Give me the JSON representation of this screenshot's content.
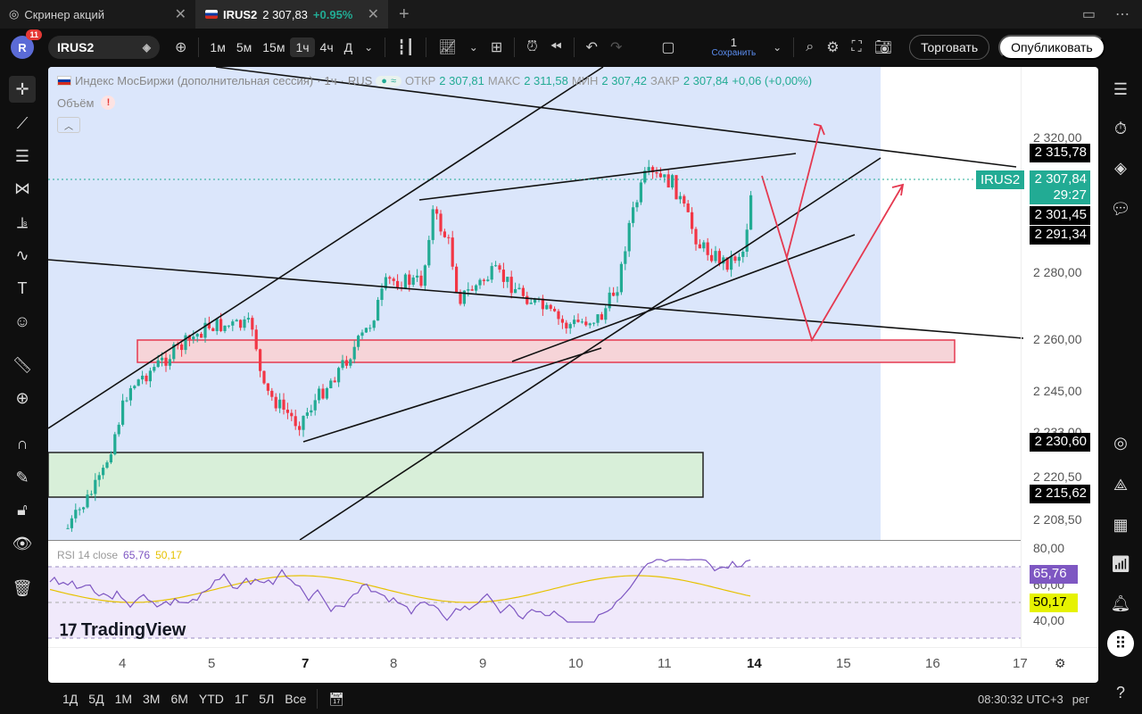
{
  "tabs": [
    {
      "title": "Скринер акций",
      "close": "✕"
    },
    {
      "symbol": "IRUS2",
      "price": "2 307,83",
      "change": "+0.95%",
      "close": "✕"
    }
  ],
  "new_tab": "+",
  "toolbar": {
    "badge": "11",
    "avatar_letter": "R",
    "symbol": "IRUS2",
    "intervals": [
      "1м",
      "5м",
      "15м",
      "1ч",
      "4ч",
      "Д"
    ],
    "active_interval": "1ч",
    "layout_count": "1",
    "save_label": "Сохранить",
    "trade_label": "Торговать",
    "publish_label": "Опубликовать"
  },
  "legend": {
    "title": "Индекс МосБиржи (дополнительная сессия)",
    "interval": "1ч",
    "exchange": "RUS",
    "open_label": "ОТКР",
    "open": "2 307,81",
    "high_label": "МАКС",
    "high": "2 311,58",
    "low_label": "МИН",
    "low": "2 307,42",
    "close_label": "ЗАКР",
    "close": "2 307,84",
    "change": "+0,06 (+0,00%)",
    "volume_label": "Объём"
  },
  "price_axis": [
    "2 320,00",
    "2 280,00",
    "2 260,00",
    "2 245,00",
    "2 233,00",
    "2 220,50",
    "2 208,50"
  ],
  "price_labels": [
    {
      "value": "2 315,78",
      "style": "dark"
    },
    {
      "value": "2 307,84",
      "style": "green",
      "sub": "29:27",
      "tag": "IRUS2"
    },
    {
      "value": "2 301,45",
      "style": "dark"
    },
    {
      "value": "2 291,34",
      "style": "dark"
    },
    {
      "value": "2 230,60",
      "style": "dark"
    },
    {
      "value": "2 215,62",
      "style": "dark"
    }
  ],
  "rsi": {
    "label": "RSI 14 close",
    "value": "65,76",
    "ma": "50,17",
    "axis": [
      "80,00",
      "60,00",
      "40,00"
    ]
  },
  "time_axis": [
    "4",
    "5",
    "7",
    "8",
    "9",
    "10",
    "11",
    "14",
    "15",
    "16",
    "17"
  ],
  "logo_text": "TradingView",
  "bottom": {
    "ranges": [
      "1Д",
      "5Д",
      "1М",
      "3М",
      "6М",
      "YTD",
      "1Г",
      "5Л",
      "Все"
    ],
    "clock": "08:30:32 UTC+3",
    "scale": "рег"
  },
  "colors": {
    "up": "#22ab94",
    "down": "#f23645",
    "channel": "#dbe6fb",
    "supply": "#f6d4d8",
    "demand": "#d8efd9",
    "rsi": "#7e57c2",
    "rsi_ma": "#e6c200"
  },
  "icons": [
    "cursor-icon",
    "trendline-icon",
    "fib-icon",
    "pattern-icon",
    "forecast-icon",
    "brush-icon",
    "text-icon",
    "emoji-icon",
    "ruler-icon",
    "zoom-icon",
    "magnet-icon",
    "lock-icon",
    "eye-icon",
    "trash-icon"
  ]
}
